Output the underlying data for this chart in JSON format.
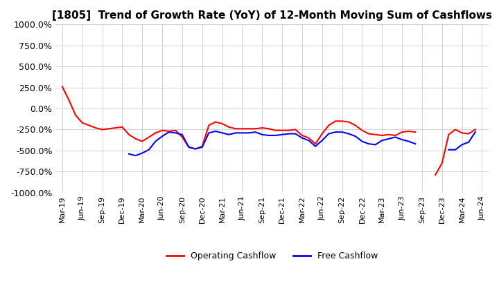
{
  "title": "[1805]  Trend of Growth Rate (YoY) of 12-Month Moving Sum of Cashflows",
  "ylim": [
    -1000,
    1000
  ],
  "yticks": [
    1000,
    750,
    500,
    250,
    0,
    -250,
    -500,
    -750,
    -1000
  ],
  "ytick_labels": [
    "1000.0%",
    "750.0%",
    "500.0%",
    "250.0%",
    "0.0%",
    "-250.0%",
    "-500.0%",
    "-750.0%",
    "-1000.0%"
  ],
  "legend_labels": [
    "Operating Cashflow",
    "Free Cashflow"
  ],
  "legend_colors": [
    "red",
    "blue"
  ],
  "x_labels": [
    "Mar-19",
    "Jun-19",
    "Sep-19",
    "Dec-19",
    "Mar-20",
    "Jun-20",
    "Sep-20",
    "Dec-20",
    "Mar-21",
    "Jun-21",
    "Sep-21",
    "Dec-21",
    "Mar-22",
    "Jun-22",
    "Sep-22",
    "Dec-22",
    "Mar-23",
    "Jun-23",
    "Sep-23",
    "Dec-23",
    "Mar-24",
    "Jun-24"
  ],
  "tick_positions": [
    0,
    3,
    6,
    9,
    12,
    15,
    18,
    21,
    24,
    27,
    30,
    33,
    36,
    39,
    42,
    45,
    48,
    51,
    54,
    57,
    60,
    63
  ],
  "operating_y": [
    260,
    100,
    -80,
    -170,
    -200,
    -230,
    -250,
    -240,
    -230,
    -220,
    -310,
    -360,
    -390,
    -340,
    -290,
    -260,
    -270,
    -260,
    -340,
    -460,
    -480,
    -450,
    -200,
    -160,
    -180,
    -220,
    -240,
    -240,
    -240,
    -240,
    -230,
    -240,
    -260,
    -260,
    -260,
    -250,
    -320,
    -350,
    -420,
    -300,
    -200,
    -150,
    -150,
    -160,
    -200,
    -260,
    -300,
    -310,
    -320,
    -310,
    -320,
    -280,
    -270,
    -280,
    null,
    null,
    -790,
    -650,
    -310,
    -250,
    -290,
    -300,
    -250,
    null
  ],
  "free_y": [
    null,
    null,
    null,
    null,
    null,
    null,
    null,
    null,
    null,
    null,
    -540,
    -560,
    -530,
    -490,
    -390,
    -330,
    -280,
    -290,
    -310,
    -460,
    -480,
    -460,
    -290,
    -270,
    -290,
    -310,
    -290,
    -290,
    -290,
    -280,
    -310,
    -320,
    -320,
    -310,
    -300,
    -300,
    -350,
    -380,
    -450,
    -380,
    -300,
    -280,
    -280,
    -300,
    -330,
    -390,
    -420,
    -430,
    -380,
    -360,
    -340,
    -370,
    -390,
    -420,
    null,
    null,
    null,
    null,
    -490,
    -490,
    -430,
    -400,
    -280,
    null
  ],
  "n_points": 64,
  "background_color": "#ffffff",
  "grid_color": "#cccccc"
}
